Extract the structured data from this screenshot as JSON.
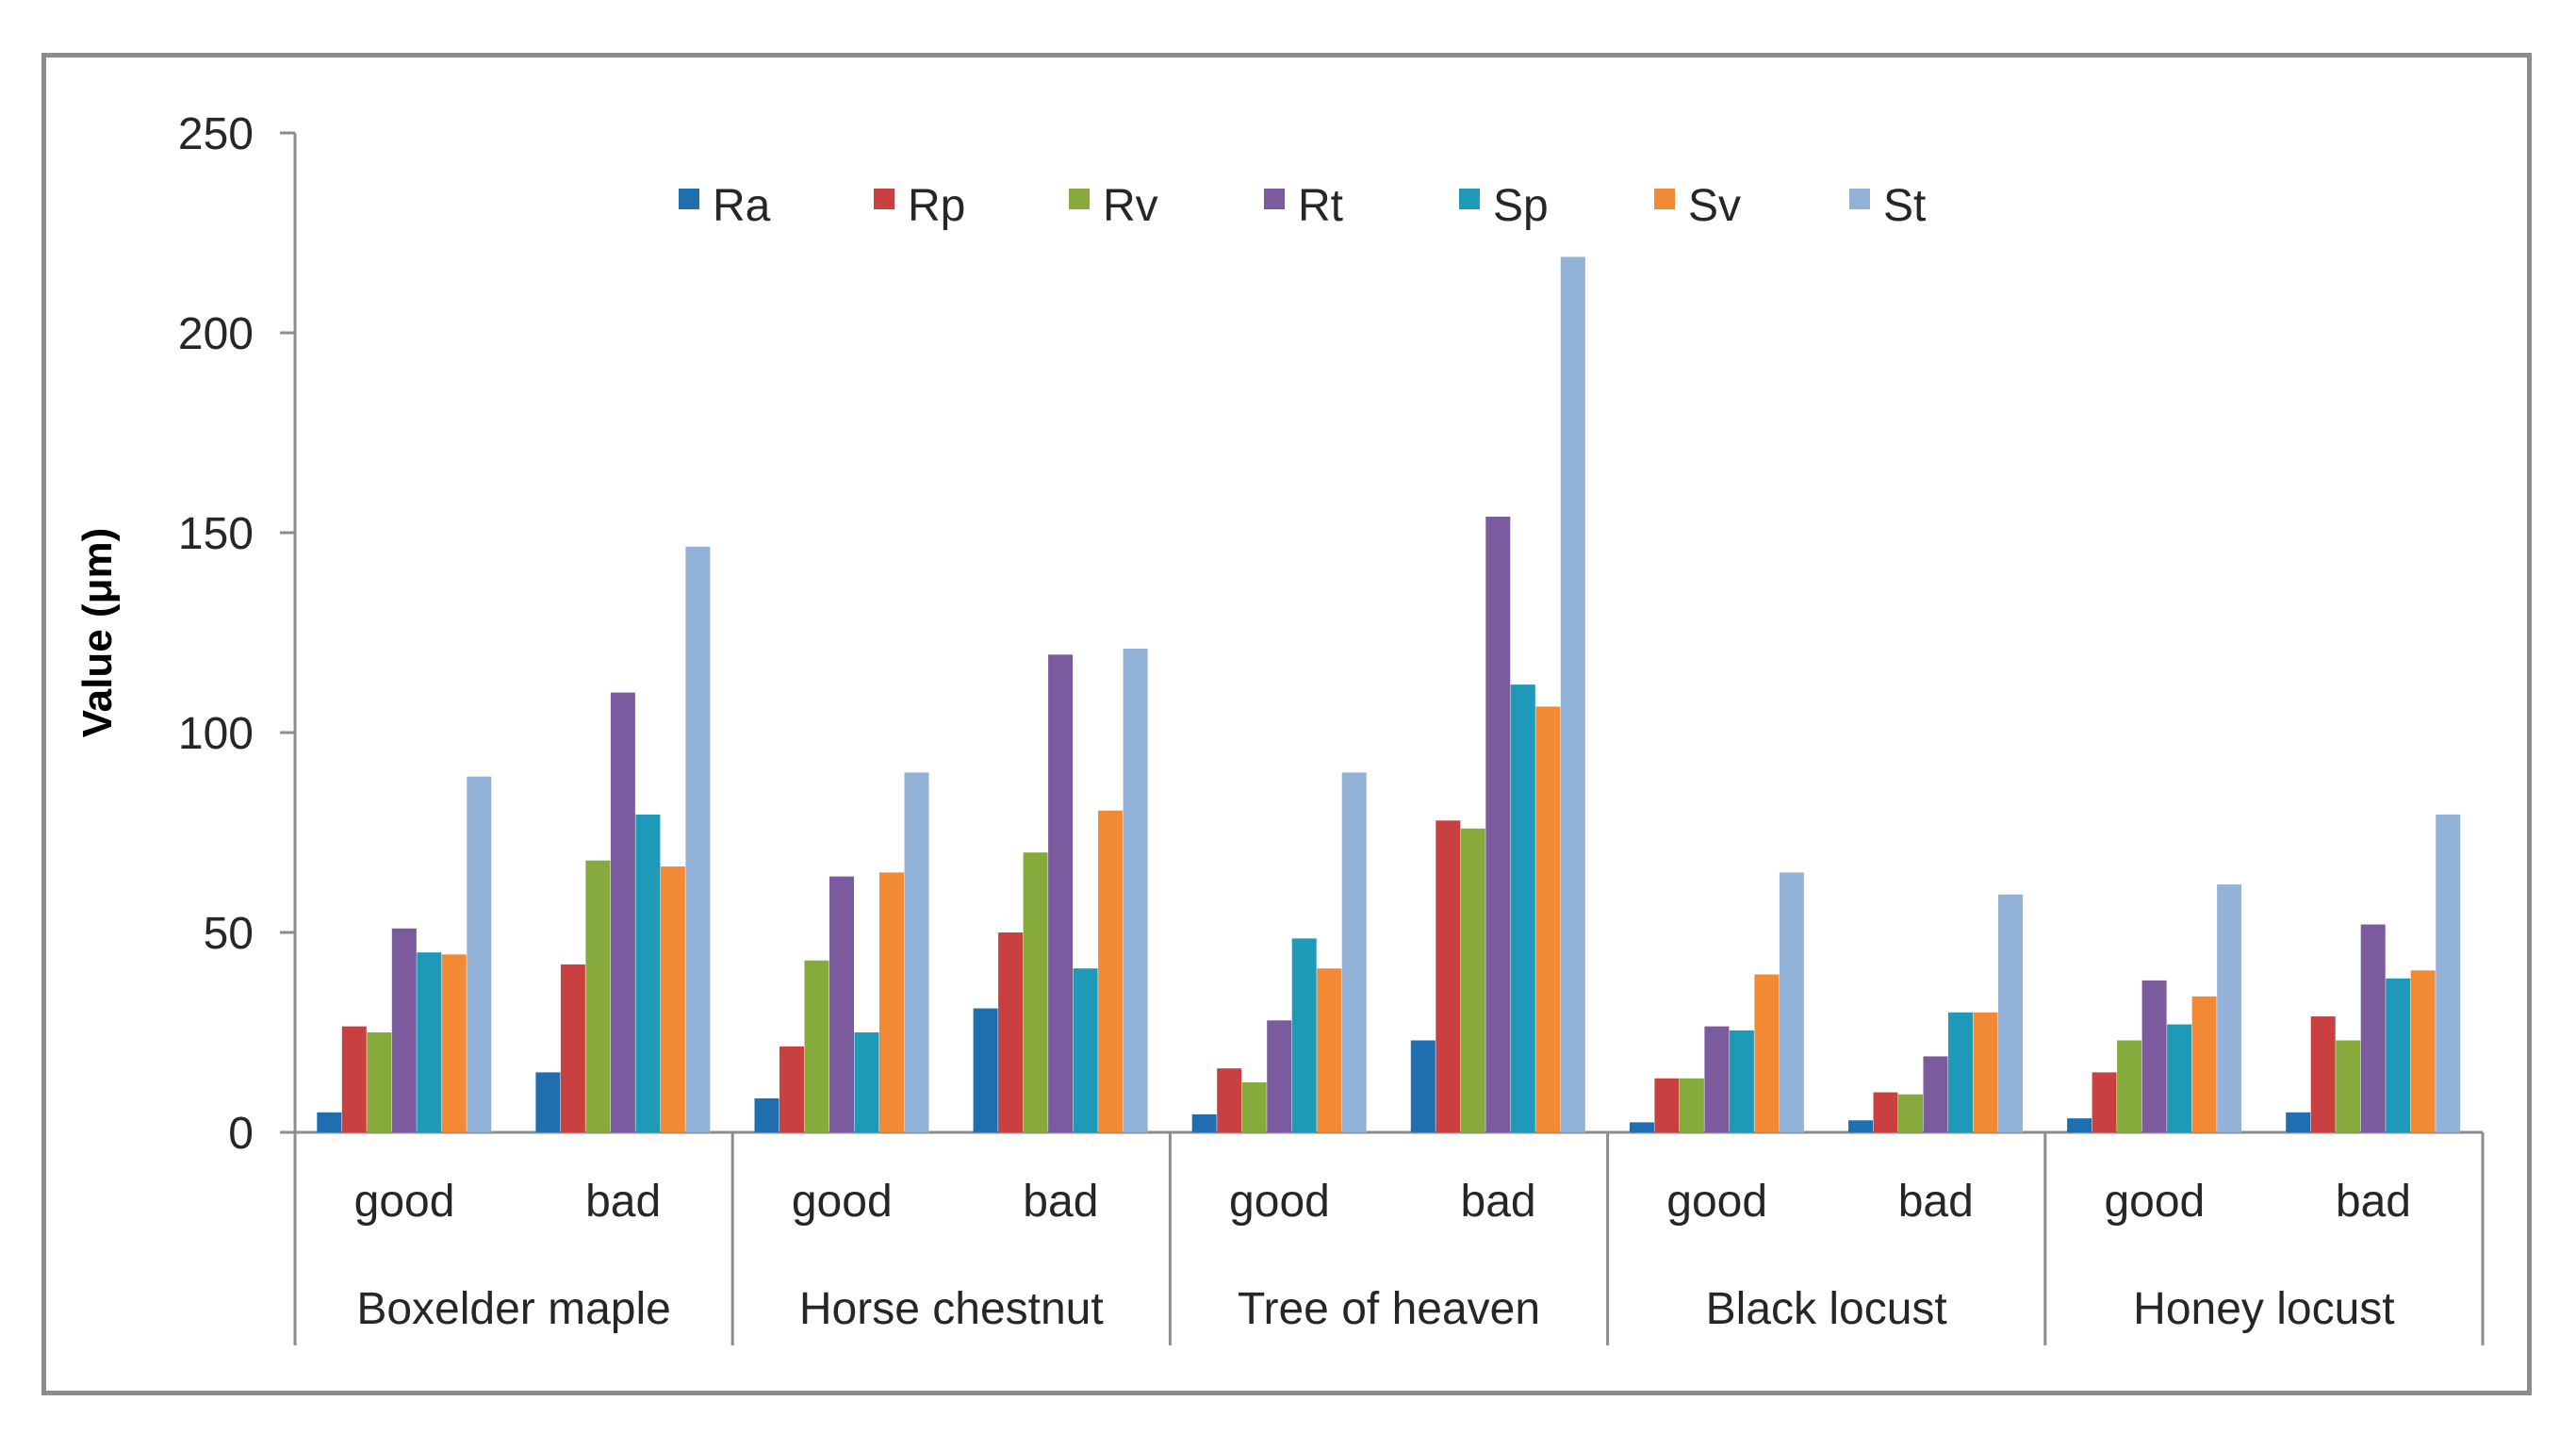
{
  "chart_data": {
    "type": "bar",
    "title": "",
    "xlabel": "",
    "ylabel": "Value (μm)",
    "ylim": [
      0,
      250
    ],
    "yticks": [
      0,
      50,
      100,
      150,
      200,
      250
    ],
    "grid": false,
    "legend_position": "top",
    "groups": [
      "Boxelder maple",
      "Horse chestnut",
      "Tree of heaven",
      "Black locust",
      "Honey locust"
    ],
    "categories": [
      "good",
      "bad",
      "good",
      "bad",
      "good",
      "bad",
      "good",
      "bad",
      "good",
      "bad"
    ],
    "series": [
      {
        "name": "Ra",
        "color": "#1f6fb0",
        "values": [
          5,
          15,
          8.5,
          31,
          4.5,
          23,
          2.5,
          3,
          3.5,
          5
        ]
      },
      {
        "name": "Rp",
        "color": "#c94040",
        "values": [
          26.5,
          42,
          21.5,
          50,
          16,
          78,
          13.5,
          10,
          15,
          29
        ]
      },
      {
        "name": "Rv",
        "color": "#86aa3c",
        "values": [
          25,
          68,
          43,
          70,
          12.5,
          76,
          13.5,
          9.5,
          23,
          23
        ]
      },
      {
        "name": "Rt",
        "color": "#7b5a9e",
        "values": [
          51,
          110,
          64,
          119.5,
          28,
          154,
          26.5,
          19,
          38,
          52
        ]
      },
      {
        "name": "Sp",
        "color": "#1e9ab8",
        "values": [
          45,
          79.5,
          25,
          41,
          48.5,
          112,
          25.5,
          30,
          27,
          38.5
        ]
      },
      {
        "name": "Sv",
        "color": "#f28a35",
        "values": [
          44.5,
          66.5,
          65,
          80.5,
          41,
          106.5,
          39.5,
          30,
          34,
          40.5
        ]
      },
      {
        "name": "St",
        "color": "#93b2d8",
        "values": [
          89,
          146.5,
          90,
          121,
          90,
          219,
          65,
          59.5,
          62,
          79.5
        ]
      }
    ]
  }
}
